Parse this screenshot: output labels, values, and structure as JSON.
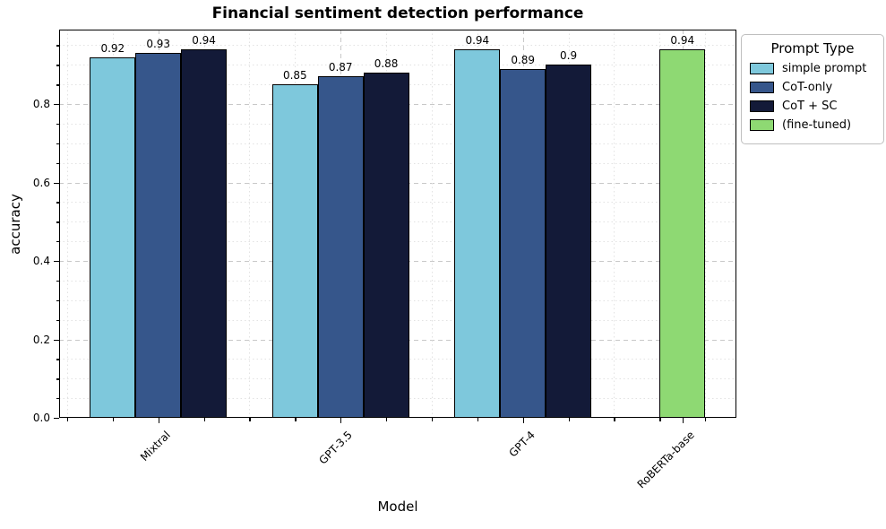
{
  "figure": {
    "title": "Financial sentiment detection performance",
    "xlabel": "Model",
    "ylabel": "accuracy"
  },
  "legend": {
    "title": "Prompt Type"
  },
  "chart_data": {
    "type": "bar",
    "title": "Financial sentiment detection performance",
    "xlabel": "Model",
    "ylabel": "accuracy",
    "ylim": [
      0,
      0.99
    ],
    "yticks": [
      0.0,
      0.2,
      0.4,
      0.6,
      0.8
    ],
    "ytick_labels": [
      "0.0",
      "0.2",
      "0.4",
      "0.6",
      "0.8"
    ],
    "grid": "major dashed and minor dotted gridlines on both axes",
    "legend_position": "upper right, outside plot area",
    "categories": [
      "Mixtral",
      "GPT-3.5",
      "GPT-4",
      "RoBERTa-base"
    ],
    "series": [
      {
        "name": "simple prompt",
        "color": "#7ec8dc",
        "values": [
          0.92,
          0.85,
          0.94,
          null
        ],
        "labels": [
          "0.92",
          "0.85",
          "0.94",
          null
        ]
      },
      {
        "name": "CoT-only",
        "color": "#36568b",
        "values": [
          0.93,
          0.87,
          0.89,
          null
        ],
        "labels": [
          "0.93",
          "0.87",
          "0.89",
          null
        ]
      },
      {
        "name": "CoT + SC",
        "color": "#131a38",
        "values": [
          0.94,
          0.88,
          0.9,
          null
        ],
        "labels": [
          "0.94",
          "0.88",
          "0.9",
          null
        ]
      },
      {
        "name": "(fine-tuned)",
        "color": "#8ed973",
        "values": [
          null,
          null,
          null,
          0.94
        ],
        "labels": [
          null,
          null,
          null,
          "0.94"
        ]
      }
    ]
  }
}
